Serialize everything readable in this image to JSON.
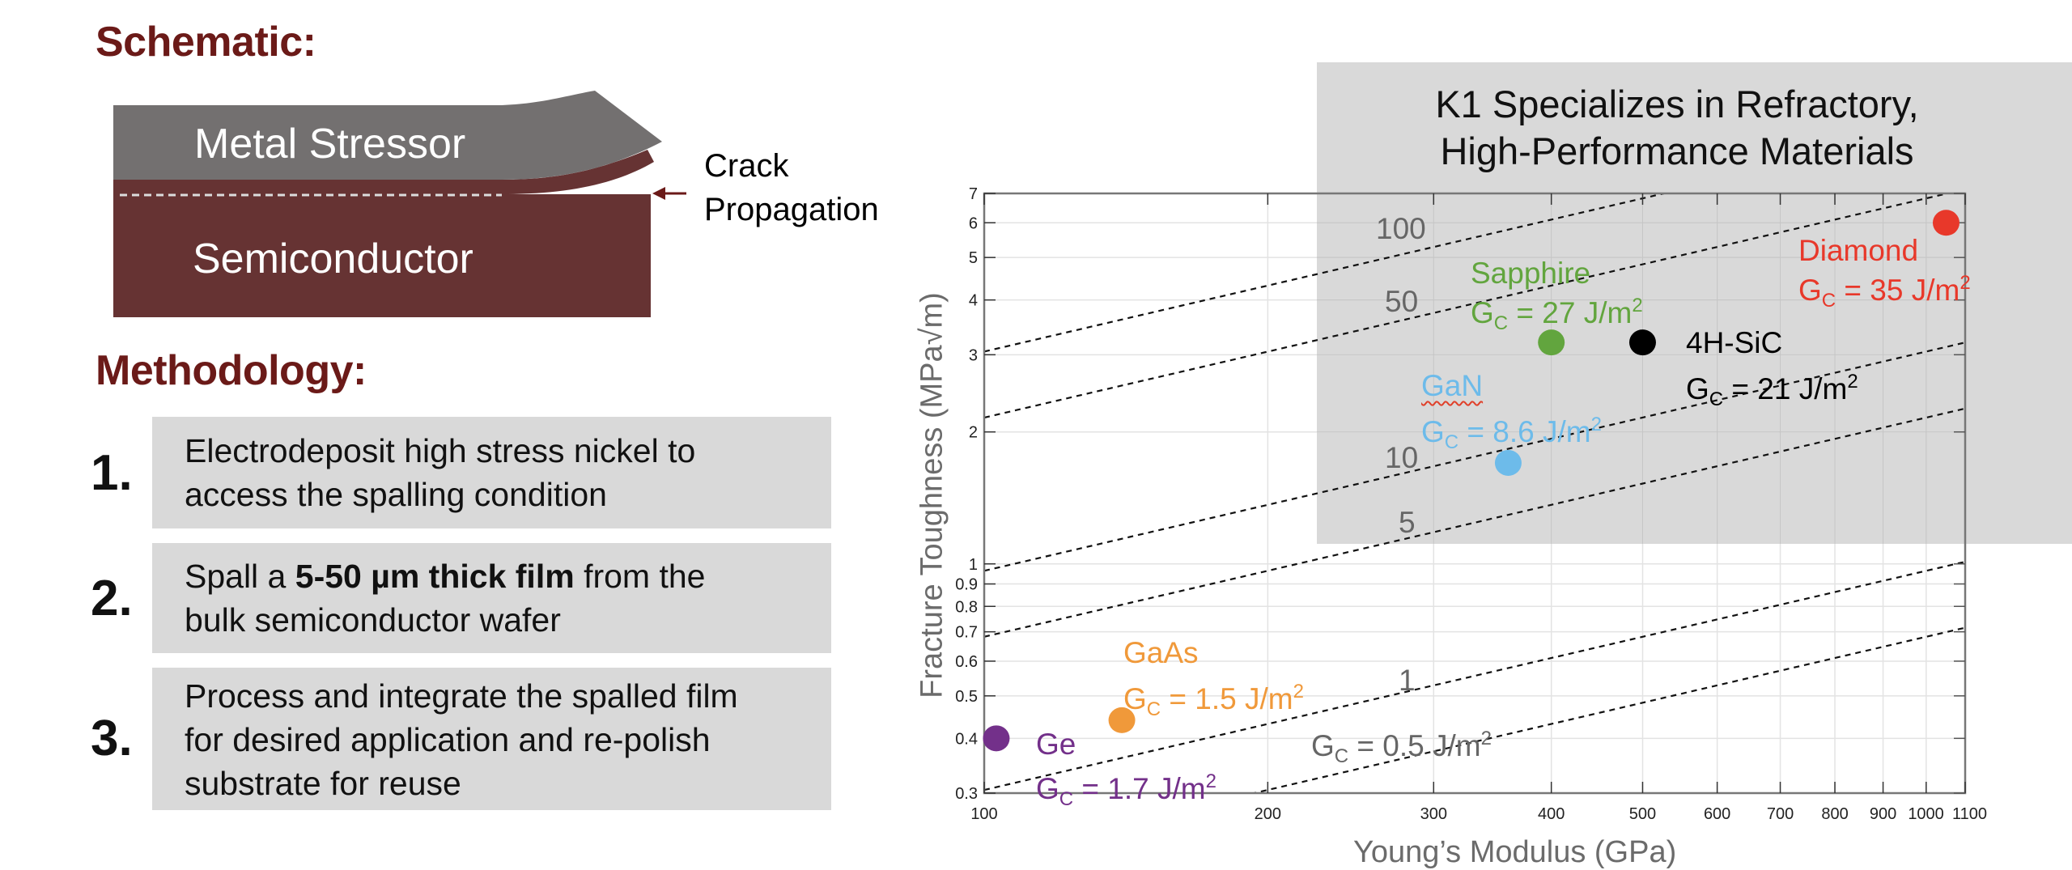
{
  "schematic": {
    "heading": "Schematic:",
    "metal_label": "Metal Stressor",
    "semi_label": "Semiconductor",
    "crack_label_line1": "Crack",
    "crack_label_line2": "Propagation",
    "colors": {
      "metal": "#737070",
      "semiconductor": "#663333",
      "heading": "#6b1a18"
    }
  },
  "methodology": {
    "heading": "Methodology:",
    "steps": [
      {
        "num": "1.",
        "lines": [
          "Electrodeposit high stress nickel to",
          "access the spalling condition"
        ]
      },
      {
        "num": "2.",
        "line1_pre": "Spall a ",
        "line1_bold": "5-50 µm thick film",
        "line1_post": " from the",
        "line2": "bulk semiconductor wafer"
      },
      {
        "num": "3.",
        "lines": [
          "Process and integrate the spalled film",
          "for desired application and re-polish",
          "substrate for reuse"
        ]
      }
    ]
  },
  "panel": {
    "title_line1": "K1 Specializes in Refractory,",
    "title_line2": "High-Performance Materials"
  },
  "chart_data": {
    "type": "scatter",
    "title": "",
    "xlabel": "Young’s Modulus (GPa)",
    "ylabel": "Fracture Toughness (MPa√m)",
    "xscale": "log",
    "yscale": "log",
    "xlim": [
      100,
      1100
    ],
    "ylim": [
      0.3,
      7
    ],
    "grid": true,
    "x_ticks": [
      100,
      200,
      300,
      400,
      500,
      600,
      700,
      800,
      900,
      1000,
      1100
    ],
    "x_tick_labels": [
      "100",
      "200",
      "300",
      "400",
      "500",
      "600",
      "700",
      "800",
      "900",
      "1000",
      "1100"
    ],
    "y_ticks": [
      0.3,
      0.4,
      0.5,
      0.6,
      0.7,
      0.8,
      0.9,
      1,
      2,
      3,
      4,
      5,
      6,
      7
    ],
    "y_tick_labels": [
      "0.3",
      "0.4",
      "0.5",
      "0.6",
      "0.7",
      "0.8",
      "0.9",
      "1",
      "2",
      "3",
      "4",
      "5",
      "6",
      "7"
    ],
    "points": [
      {
        "name": "Ge",
        "x": 103,
        "y": 0.4,
        "gc": "1.7",
        "color": "#73308a"
      },
      {
        "name": "GaAs",
        "x": 140,
        "y": 0.44,
        "gc": "1.5",
        "color": "#f0993a"
      },
      {
        "name": "GaN",
        "x": 360,
        "y": 1.7,
        "gc": "8.6",
        "color": "#6dbbea"
      },
      {
        "name": "Sapphire",
        "x": 400,
        "y": 3.2,
        "gc": "27",
        "color": "#62a53e"
      },
      {
        "name": "4H-SiC",
        "x": 500,
        "y": 3.2,
        "gc": "21",
        "color": "#000000"
      },
      {
        "name": "Diamond",
        "x": 1050,
        "y": 6.0,
        "gc": "35",
        "color": "#e8382a"
      }
    ],
    "contours": {
      "relation": "K = 0.0305 * sqrt(E * Gc)",
      "gc_values": [
        100,
        50,
        10,
        5,
        1,
        0.5
      ],
      "labels": [
        "100",
        "50",
        "10",
        "5",
        "1",
        "G_C = 0.5 J/m²"
      ]
    }
  },
  "annotations": {
    "gc_prefix": "G",
    "gc_sub": "C",
    "unit": " J/m",
    "unit_sup": "2",
    "eq": " = ",
    "contour_last_text": "G",
    "contour_last_val": " = 0.5 J/m"
  }
}
